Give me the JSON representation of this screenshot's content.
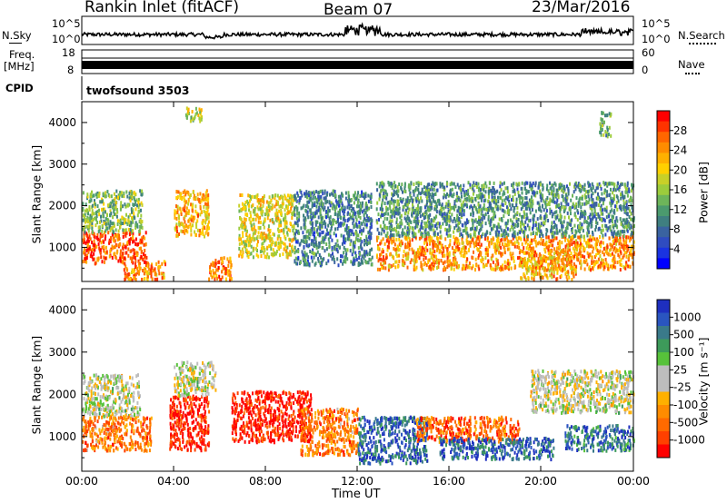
{
  "header": {
    "station": "Rankin Inlet (fitACF)",
    "beam": "Beam 07",
    "date": "23/Mar/2016"
  },
  "noise_panel": {
    "left_label": "N.Sky",
    "right_label": "N.Search",
    "left_ticks": [
      "10^5",
      "10^0"
    ],
    "right_ticks": [
      "10^5",
      "10^0"
    ]
  },
  "freq_panel": {
    "left_label_line1": "Freq.",
    "left_label_line2": "[MHz]",
    "right_label": "Nave",
    "left_ticks": [
      "18",
      "8"
    ],
    "right_ticks": [
      "60",
      "0"
    ]
  },
  "cpid_panel": {
    "label": "CPID",
    "program": "twofsound 3503"
  },
  "colorbars": {
    "power": {
      "label": "Power [dB]",
      "ticks": [
        "28",
        "24",
        "20",
        "16",
        "12",
        "8",
        "4"
      ],
      "colors": [
        "#ff0000",
        "#ff3300",
        "#ff6600",
        "#ff8c00",
        "#ffb000",
        "#ffd000",
        "#c8d028",
        "#9ccc3c",
        "#6db55a",
        "#4b9a6e",
        "#3f7f80",
        "#3a63a0",
        "#2f4cc0",
        "#1a33e0",
        "#0000ff"
      ]
    },
    "velocity": {
      "label": "Velocity [m s⁻¹]",
      "ticks": [
        "1000",
        "500",
        "100",
        "25",
        "-25",
        "-100",
        "-500",
        "-1000"
      ],
      "colors": [
        "#1e2fbf",
        "#2a55c0",
        "#3a7a8a",
        "#3d9a5a",
        "#57c23a",
        "#bdbdbd",
        "#bdbdbd",
        "#ffb000",
        "#ff8c00",
        "#ff6a00",
        "#ff4000",
        "#ff0000"
      ]
    }
  },
  "x_axis": {
    "label": "Time UT",
    "ticks": [
      "00:00",
      "04:00",
      "08:00",
      "12:00",
      "16:00",
      "20:00",
      "00:00"
    ]
  },
  "chart_data": [
    {
      "type": "heatmap",
      "name": "power-panel",
      "title": "",
      "xlabel": "",
      "ylabel": "Slant Range [km]",
      "xlim": [
        0,
        24
      ],
      "ylim": [
        180,
        4500
      ],
      "y_ticks": [
        1000,
        2000,
        3000,
        4000
      ],
      "regions": [
        {
          "x": [
            0.0,
            2.8
          ],
          "y": [
            650,
            1400
          ],
          "level": 0.85
        },
        {
          "x": [
            0.0,
            2.6
          ],
          "y": [
            1400,
            2400
          ],
          "level": 0.45
        },
        {
          "x": [
            1.8,
            3.6
          ],
          "y": [
            250,
            700
          ],
          "level": 0.75
        },
        {
          "x": [
            4.0,
            5.5
          ],
          "y": [
            1300,
            2400
          ],
          "level": 0.7
        },
        {
          "x": [
            4.5,
            5.2
          ],
          "y": [
            4050,
            4400
          ],
          "level": 0.55
        },
        {
          "x": [
            5.5,
            6.5
          ],
          "y": [
            250,
            800
          ],
          "level": 0.8
        },
        {
          "x": [
            6.8,
            9.2
          ],
          "y": [
            800,
            2300
          ],
          "level": 0.6
        },
        {
          "x": [
            9.2,
            12.6
          ],
          "y": [
            600,
            2400
          ],
          "level": 0.3
        },
        {
          "x": [
            12.8,
            24.0
          ],
          "y": [
            500,
            1300
          ],
          "level": 0.75
        },
        {
          "x": [
            12.8,
            24.0
          ],
          "y": [
            1300,
            2600
          ],
          "level": 0.35
        },
        {
          "x": [
            19.0,
            21.5
          ],
          "y": [
            250,
            800
          ],
          "level": 0.7
        },
        {
          "x": [
            22.5,
            23.0
          ],
          "y": [
            3700,
            4300
          ],
          "level": 0.4
        }
      ]
    },
    {
      "type": "heatmap",
      "name": "velocity-panel",
      "title": "",
      "xlabel": "Time UT",
      "ylabel": "Slant Range [km]",
      "xlim": [
        0,
        24
      ],
      "ylim": [
        180,
        4500
      ],
      "y_ticks": [
        1000,
        2000,
        3000,
        4000
      ],
      "regions": [
        {
          "x": [
            0.0,
            2.5
          ],
          "y": [
            1500,
            2500
          ],
          "level": 0.5
        },
        {
          "x": [
            0.0,
            3.0
          ],
          "y": [
            700,
            1500
          ],
          "level": 0.25
        },
        {
          "x": [
            3.8,
            5.5
          ],
          "y": [
            700,
            2000
          ],
          "level": 0.05
        },
        {
          "x": [
            4.0,
            5.8
          ],
          "y": [
            2000,
            2800
          ],
          "level": 0.5
        },
        {
          "x": [
            6.5,
            10.0
          ],
          "y": [
            900,
            2100
          ],
          "level": 0.05
        },
        {
          "x": [
            9.5,
            12.0
          ],
          "y": [
            600,
            1700
          ],
          "level": 0.25
        },
        {
          "x": [
            12.0,
            15.0
          ],
          "y": [
            400,
            1500
          ],
          "level": 0.85
        },
        {
          "x": [
            14.5,
            19.0
          ],
          "y": [
            900,
            1500
          ],
          "level": 0.2
        },
        {
          "x": [
            15.5,
            20.5
          ],
          "y": [
            500,
            1000
          ],
          "level": 0.85
        },
        {
          "x": [
            19.5,
            24.0
          ],
          "y": [
            1600,
            2600
          ],
          "level": 0.5
        },
        {
          "x": [
            21.0,
            24.0
          ],
          "y": [
            700,
            1300
          ],
          "level": 0.8
        }
      ]
    }
  ]
}
